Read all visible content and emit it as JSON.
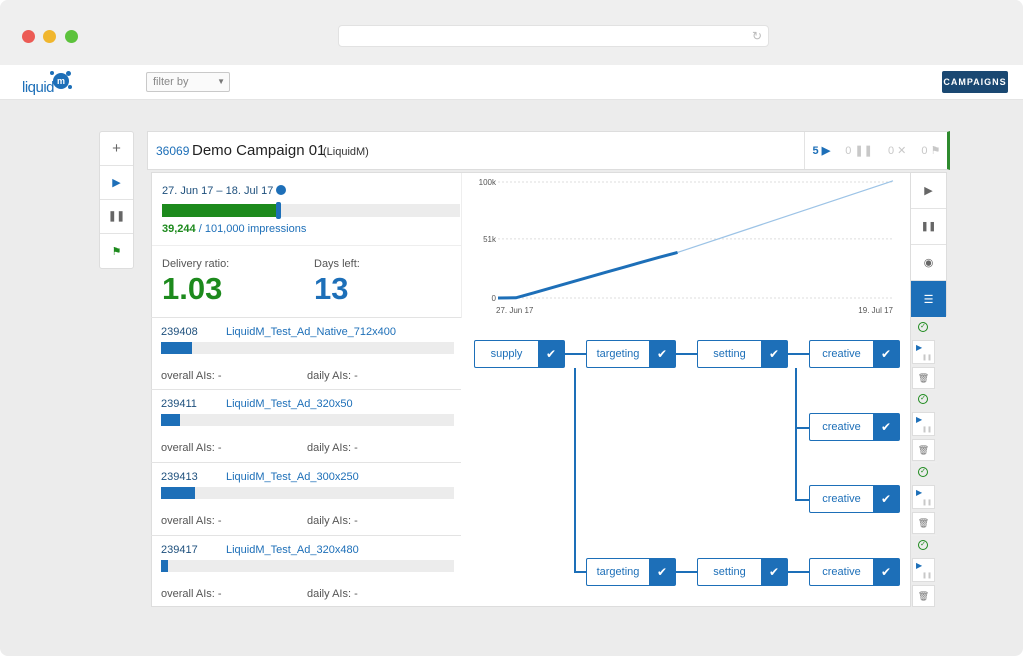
{
  "browser": {
    "traffic_lights": {
      "close": "#ec5b55",
      "minimize": "#f0b62e",
      "zoom": "#5cc23c"
    },
    "reload_icon": "reload-icon"
  },
  "app": {
    "logo_text": "liquid",
    "logo_mark": "m",
    "filter_placeholder": "filter by",
    "campaigns_button": "CAMPAIGNS",
    "colors": {
      "brand": "#1d6fb8",
      "success": "#1d8a1d",
      "nav": "#1a4872"
    }
  },
  "left_toolbar": {
    "icons": [
      "plus-icon",
      "play-icon",
      "pause-icon",
      "flag-icon"
    ]
  },
  "campaign": {
    "id": "36069",
    "name": "Demo Campaign 01",
    "org": "(LiquidM)",
    "stats": {
      "running": "5",
      "paused": "0",
      "stopped": "0",
      "finished": "0"
    },
    "date_range": "27. Jun 17 – 18. Jul 17",
    "progress_fraction": 0.3886,
    "impressions_done": "39,244",
    "impressions_total": "/ 101,000 impressions",
    "delivery_label": "Delivery ratio:",
    "delivery_value": "1.03",
    "days_label": "Days left:",
    "days_value": "13"
  },
  "chart_data": {
    "type": "line",
    "y_ticks": [
      "100k",
      "51k",
      "0"
    ],
    "x_ticks": [
      "27. Jun 17",
      "19. Jul 17"
    ],
    "ylim": [
      0,
      100000
    ],
    "series": [
      {
        "values_x": [
          0,
          1,
          2,
          3,
          4,
          5,
          6,
          7,
          8,
          9,
          10
        ],
        "values_y": [
          0,
          200,
          4500,
          8900,
          13300,
          17700,
          22100,
          26500,
          30900,
          35200,
          39244
        ]
      },
      {
        "values_x": [
          10,
          22
        ],
        "values_y": [
          39244,
          101000
        ]
      }
    ],
    "grid": true
  },
  "chart_side": {
    "icons": [
      "play-icon",
      "pause-icon",
      "eye-icon",
      "list-icon"
    ]
  },
  "ads": [
    {
      "id": "239408",
      "name": "LiquidM_Test_Ad_Native_712x400",
      "fill": 0.105,
      "overall": "overall AIs: -",
      "daily": "daily AIs: -"
    },
    {
      "id": "239411",
      "name": "LiquidM_Test_Ad_320x50",
      "fill": 0.065,
      "overall": "overall AIs: -",
      "daily": "daily AIs: -"
    },
    {
      "id": "239413",
      "name": "LiquidM_Test_Ad_300x250",
      "fill": 0.115,
      "overall": "overall AIs: -",
      "daily": "daily AIs: -"
    },
    {
      "id": "239417",
      "name": "LiquidM_Test_Ad_320x480",
      "fill": 0.025,
      "overall": "overall AIs: -",
      "daily": "daily AIs: -"
    }
  ],
  "flow": {
    "supply": "supply",
    "targeting": "targeting",
    "setting": "setting",
    "creative": "creative"
  }
}
